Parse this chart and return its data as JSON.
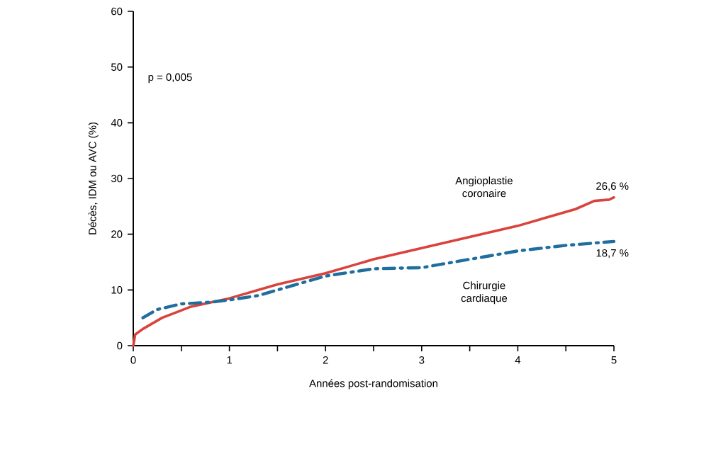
{
  "chart_data": {
    "type": "line",
    "xlabel": "Années post-randomisation",
    "ylabel": "Décès, IDM ou AVC (%)",
    "xlim": [
      0,
      5
    ],
    "ylim": [
      0,
      60
    ],
    "xticks": [
      0,
      {
        "value": 0.5,
        "label": null
      },
      1,
      {
        "value": 1.5,
        "label": null
      },
      2,
      {
        "value": 2.5,
        "label": null
      },
      3,
      {
        "value": 3.5,
        "label": null
      },
      4,
      {
        "value": 4.5,
        "label": null
      },
      5
    ],
    "yticks": [
      0,
      10,
      20,
      30,
      40,
      50,
      60
    ],
    "grid": false,
    "legend": false,
    "marker": "none",
    "series": [
      {
        "name": "Angioplastie coronaire",
        "color": "#d9433b",
        "line_style": "solid",
        "x": [
          0,
          0.02,
          0.1,
          0.3,
          0.6,
          1,
          1.5,
          2,
          2.5,
          3,
          3.5,
          4,
          4.3,
          4.6,
          4.8,
          4.95,
          5
        ],
        "values": [
          0,
          2,
          3,
          5,
          7,
          8.5,
          11,
          13,
          15.5,
          17.5,
          19.5,
          21.5,
          23,
          24.5,
          26,
          26.2,
          26.6
        ]
      },
      {
        "name": "Chirurgie cardiaque",
        "color": "#1f6e9e",
        "line_style": "dashed",
        "x": [
          0.1,
          0.25,
          0.5,
          0.8,
          1,
          1.3,
          1.6,
          2,
          2.5,
          3,
          3.5,
          4,
          4.5,
          5
        ],
        "values": [
          5,
          6.5,
          7.5,
          7.8,
          8.2,
          9,
          10.5,
          12.5,
          13.8,
          14,
          15.5,
          17,
          18,
          18.7
        ]
      }
    ],
    "annotations": [
      "p = 0,005",
      {
        "text": "26,6 %",
        "x": 5,
        "y": 26.6
      },
      {
        "text": "18,7 %",
        "x": 5,
        "y": 18.7
      }
    ]
  }
}
